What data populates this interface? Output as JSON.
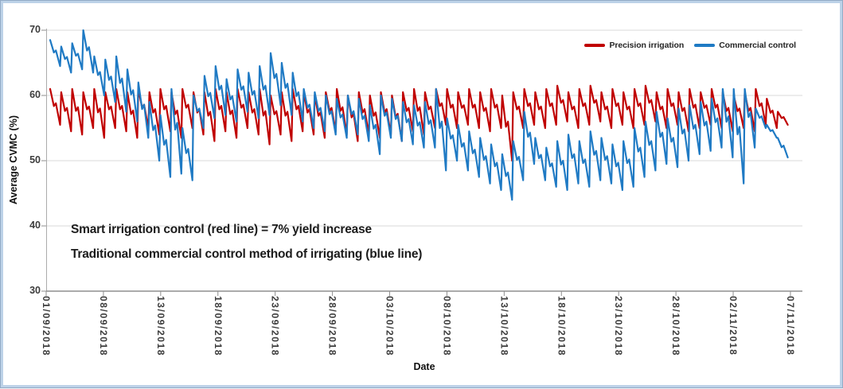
{
  "window": {
    "background": "#ffffff",
    "frame_border_color": "#bdd2e8"
  },
  "chart_data": {
    "type": "line",
    "title": "",
    "xlabel": "Date",
    "ylabel": "Average CVMC (%)",
    "ylim": [
      30,
      70
    ],
    "y_ticks": [
      30,
      40,
      50,
      60,
      70
    ],
    "x_tick_labels": [
      "01/09/2018",
      "08/09/2018",
      "13/09/2018",
      "18/09/2018",
      "23/09/2018",
      "28/09/2018",
      "03/10/2018",
      "08/10/2018",
      "13/10/2018",
      "18/10/2018",
      "23/10/2018",
      "28/10/2018",
      "02/11/2018",
      "07/11/2018"
    ],
    "grid": true,
    "legend_position": "top-right-inside",
    "annotations": [
      "Smart irrigation control (red line) = 7% yield increase",
      "Traditional commercial control method of irrigating (blue line)"
    ],
    "series": [
      {
        "name": "Precision irrigation",
        "color": "#c00000",
        "cycles_peak_trough": [
          [
            61,
            55.5
          ],
          [
            60.5,
            54.5
          ],
          [
            61,
            54
          ],
          [
            60.5,
            55
          ],
          [
            61,
            53.5
          ],
          [
            60.5,
            55
          ],
          [
            61,
            54.5
          ],
          [
            60.5,
            53.5
          ],
          [
            61,
            55
          ],
          [
            60.5,
            54
          ],
          [
            61,
            54.5
          ],
          [
            60.5,
            53.5
          ],
          [
            61,
            55
          ],
          [
            60.5,
            54
          ],
          [
            60.5,
            53
          ],
          [
            61,
            54.5
          ],
          [
            60.5,
            53.5
          ],
          [
            61,
            55
          ],
          [
            60.5,
            54
          ],
          [
            61,
            52.5
          ],
          [
            60,
            54
          ],
          [
            60.5,
            53
          ],
          [
            61,
            54.5
          ],
          [
            60.5,
            54
          ],
          [
            60,
            53.5
          ],
          [
            60.5,
            54.5
          ],
          [
            61,
            54
          ],
          [
            60,
            53
          ],
          [
            60.5,
            54
          ],
          [
            60,
            53.5
          ],
          [
            60.5,
            54
          ],
          [
            60,
            53
          ],
          [
            60.5,
            54.5
          ],
          [
            61,
            54
          ],
          [
            60.5,
            55
          ],
          [
            61,
            55.5
          ],
          [
            61,
            55
          ],
          [
            60.5,
            55.5
          ],
          [
            61,
            55
          ],
          [
            60.5,
            54.5
          ],
          [
            61,
            55
          ],
          [
            60,
            50
          ],
          [
            60.5,
            55
          ],
          [
            61,
            55.5
          ],
          [
            60.5,
            55
          ],
          [
            61,
            55.5
          ],
          [
            61.5,
            56
          ],
          [
            60.5,
            55
          ],
          [
            61,
            55.5
          ],
          [
            61.5,
            56
          ],
          [
            60.5,
            55
          ],
          [
            61,
            55.5
          ],
          [
            60.5,
            55
          ],
          [
            61,
            55.5
          ],
          [
            61.5,
            56
          ],
          [
            60.5,
            55
          ],
          [
            61,
            55.5
          ],
          [
            60.5,
            54.5
          ],
          [
            61,
            55
          ],
          [
            60.5,
            55.5
          ],
          [
            61,
            55
          ],
          [
            60.5,
            54.5
          ],
          [
            60,
            55
          ],
          [
            60.5,
            54.5
          ],
          [
            61,
            55.5
          ],
          [
            59.5,
            55
          ],
          [
            57.5,
            55.5
          ]
        ]
      },
      {
        "name": "Commercial control",
        "color": "#1f7ac4",
        "cycles_peak_trough": [
          [
            68.5,
            64.5
          ],
          [
            67.5,
            63.5
          ],
          [
            68,
            64
          ],
          [
            70,
            63.5
          ],
          [
            66,
            60
          ],
          [
            65.5,
            59
          ],
          [
            66,
            57.5
          ],
          [
            64,
            56
          ],
          [
            62,
            53.5
          ],
          [
            59,
            50
          ],
          [
            57,
            47.5
          ],
          [
            61,
            48
          ],
          [
            55,
            47
          ],
          [
            60,
            55
          ],
          [
            63,
            56.5
          ],
          [
            64.5,
            57
          ],
          [
            62.5,
            56
          ],
          [
            64,
            57.5
          ],
          [
            63.5,
            56.5
          ],
          [
            64.5,
            57
          ],
          [
            66.5,
            58.5
          ],
          [
            65,
            57
          ],
          [
            63.5,
            56
          ],
          [
            61,
            55
          ],
          [
            60.5,
            54.5
          ],
          [
            60,
            54
          ],
          [
            59.5,
            53.5
          ],
          [
            60,
            54
          ],
          [
            59.5,
            53
          ],
          [
            58.5,
            51
          ],
          [
            60,
            53.5
          ],
          [
            59.5,
            53
          ],
          [
            59,
            52.5
          ],
          [
            58.5,
            52
          ],
          [
            59,
            52
          ],
          [
            61,
            48.5
          ],
          [
            56.5,
            50
          ],
          [
            55.5,
            48.5
          ],
          [
            54.5,
            47.5
          ],
          [
            53.5,
            46.5
          ],
          [
            52.5,
            45.5
          ],
          [
            51,
            44
          ],
          [
            53,
            47
          ],
          [
            57.5,
            49.5
          ],
          [
            53.5,
            47
          ],
          [
            52,
            46
          ],
          [
            53,
            45.5
          ],
          [
            54,
            46.5
          ],
          [
            53,
            46
          ],
          [
            54.5,
            47
          ],
          [
            53.5,
            46.5
          ],
          [
            52.5,
            45.5
          ],
          [
            53,
            46
          ],
          [
            55,
            47.5
          ],
          [
            56,
            48.5
          ],
          [
            57.5,
            49.5
          ],
          [
            56.5,
            49
          ],
          [
            58,
            50
          ],
          [
            58.5,
            51
          ],
          [
            59,
            51.5
          ],
          [
            59.5,
            52
          ],
          [
            61,
            50.5
          ],
          [
            61,
            46.5
          ],
          [
            61,
            52
          ],
          [
            58,
            55
          ],
          [
            55.5,
            53.5
          ],
          [
            53.5,
            50.5
          ]
        ]
      }
    ]
  }
}
